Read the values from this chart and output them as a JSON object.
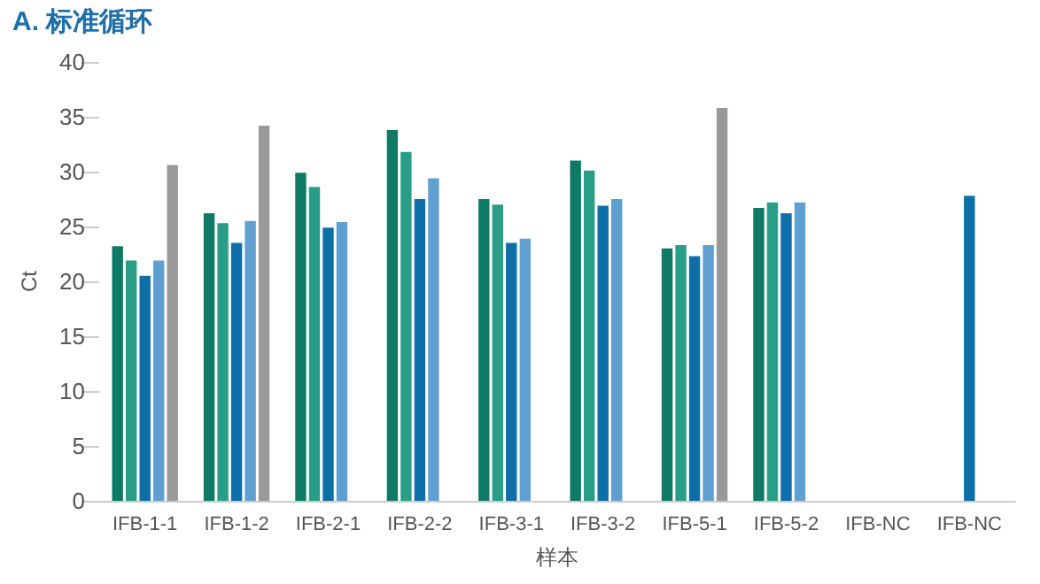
{
  "chart_data": {
    "type": "bar",
    "title": "A. 标准循环",
    "xlabel": "样本",
    "ylabel": "Ct",
    "categories": [
      "IFB-1-1",
      "IFB-1-2",
      "IFB-2-1",
      "IFB-2-2",
      "IFB-3-1",
      "IFB-3-2",
      "IFB-5-1",
      "IFB-5-2",
      "IFB-NC",
      "IFB-NC"
    ],
    "series": [
      {
        "color": "#0f7a64",
        "values": [
          23.2,
          26.2,
          29.9,
          33.8,
          27.5,
          31.0,
          23.0,
          26.7,
          null,
          null
        ]
      },
      {
        "color": "#2a9d86",
        "values": [
          21.9,
          25.3,
          28.6,
          31.8,
          27.0,
          30.1,
          23.3,
          27.2,
          null,
          null
        ]
      },
      {
        "color": "#0e6fa8",
        "values": [
          20.5,
          23.5,
          24.9,
          27.5,
          23.5,
          26.9,
          22.3,
          26.2,
          null,
          27.8
        ]
      },
      {
        "color": "#5fa0d0",
        "values": [
          21.9,
          25.5,
          25.4,
          29.4,
          23.9,
          27.5,
          23.3,
          27.2,
          null,
          null
        ]
      },
      {
        "color": "#999999",
        "values": [
          30.6,
          34.2,
          null,
          null,
          null,
          null,
          35.8,
          null,
          null,
          null
        ]
      }
    ],
    "ylim": [
      0,
      40
    ],
    "yticks": [
      0,
      5,
      10,
      15,
      20,
      25,
      30,
      35,
      40
    ],
    "grid": false
  }
}
